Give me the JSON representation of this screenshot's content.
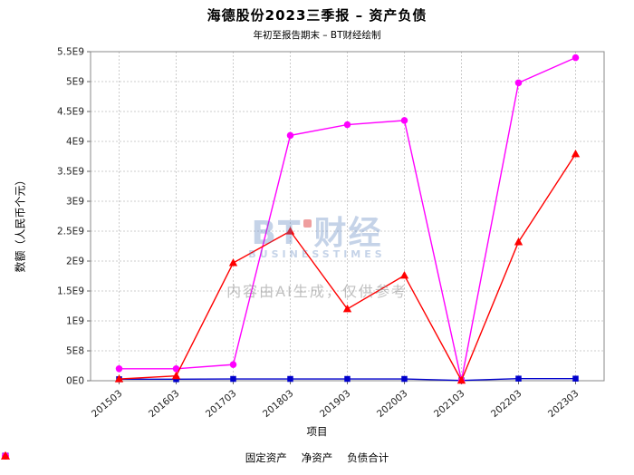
{
  "title": "海德股份2023三季报 – 资产负债",
  "subtitle": "年初至报告期末 – BT财经绘制",
  "watermark": {
    "brand_left": "BT",
    "brand_right": "财经",
    "brand_sub": "BUSINESSTIMES",
    "disclaimer": "内容由AI生成，仅供参考"
  },
  "chart_data": {
    "type": "line",
    "title": "海德股份2023三季报 – 资产负债",
    "subtitle": "年初至报告期末 – BT财经绘制",
    "xlabel": "项目",
    "ylabel": "数额（人民币个元）",
    "categories": [
      "201503",
      "201603",
      "201703",
      "201803",
      "201903",
      "202003",
      "202103",
      "202203",
      "202303"
    ],
    "series": [
      {
        "name": "固定资产",
        "color": "#0000cc",
        "marker": "square",
        "values": [
          25000000,
          25000000,
          30000000,
          30000000,
          30000000,
          30000000,
          5000000,
          35000000,
          35000000
        ]
      },
      {
        "name": "净资产",
        "color": "#ff00ff",
        "marker": "circle",
        "values": [
          200000000,
          200000000,
          270000000,
          4100000000,
          4280000000,
          4350000000,
          5000000,
          4980000000,
          5400000000
        ]
      },
      {
        "name": "负债合计",
        "color": "#ff0000",
        "marker": "triangle",
        "values": [
          30000000,
          80000000,
          1970000000,
          2500000000,
          1200000000,
          1760000000,
          5000000,
          2320000000,
          3790000000
        ]
      }
    ],
    "ylim": [
      0,
      5500000000
    ],
    "ytick_step": 500000000,
    "ytick_labels": [
      "0E0",
      "5E8",
      "1E9",
      "1.5E9",
      "2E9",
      "2.5E9",
      "3E9",
      "3.5E9",
      "4E9",
      "4.5E9",
      "5E9",
      "5.5E9"
    ],
    "grid": true,
    "legend_position": "bottom"
  }
}
